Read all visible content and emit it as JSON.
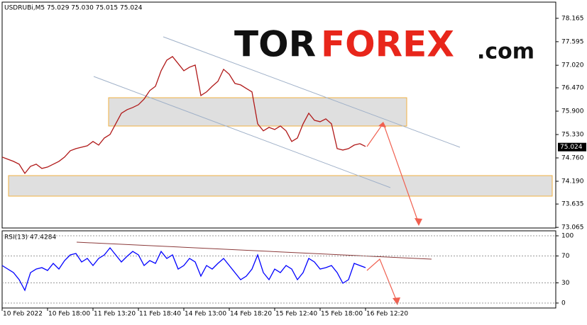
{
  "logo": {
    "part1": "TOR",
    "part2": "FOREX",
    "part3": ".com"
  },
  "chart_data": [
    {
      "type": "line",
      "title": "USDRUBi,M5  75.029 75.030 75.015 75.024",
      "x": [
        0,
        2,
        4,
        6,
        8,
        10,
        12,
        14,
        16,
        18,
        20,
        22,
        24,
        26,
        28,
        30,
        32,
        34,
        36,
        38,
        40,
        42,
        44,
        46,
        48,
        50,
        52,
        54,
        56,
        58,
        60,
        62,
        64,
        66,
        68,
        70,
        72,
        74,
        76,
        78,
        80,
        82,
        84,
        86,
        88,
        90,
        92,
        94,
        96,
        98,
        100,
        102,
        104,
        106,
        108,
        110,
        112,
        114,
        116,
        118,
        120,
        122,
        124,
        126,
        128
      ],
      "series": [
        {
          "name": "USDRUBi",
          "color": "#b01818",
          "values": [
            74.78,
            74.728,
            74.676,
            74.607,
            74.382,
            74.555,
            74.607,
            74.503,
            74.538,
            74.607,
            74.676,
            74.78,
            74.935,
            74.987,
            75.021,
            75.056,
            75.16,
            75.073,
            75.246,
            75.332,
            75.591,
            75.85,
            75.936,
            75.989,
            76.058,
            76.196,
            76.403,
            76.507,
            76.887,
            77.146,
            77.232,
            77.06,
            76.887,
            76.973,
            77.025,
            76.282,
            76.369,
            76.507,
            76.628,
            76.921,
            76.8,
            76.576,
            76.541,
            76.455,
            76.369,
            75.591,
            75.419,
            75.505,
            75.453,
            75.539,
            75.419,
            75.16,
            75.246,
            75.591,
            75.85,
            75.678,
            75.643,
            75.712,
            75.591,
            74.987,
            74.952,
            74.987,
            75.073,
            75.108,
            75.039
          ]
        }
      ],
      "last_price": 75.024,
      "xlim": [
        0,
        195
      ],
      "ylim": [
        73.05,
        78.56
      ],
      "yticks": [
        78.165,
        77.595,
        {
          "value": 77.02,
          "label": "77.020"
        },
        {
          "value": 76.47,
          "label": "76.470"
        },
        {
          "value": 75.9,
          "label": "75.900"
        },
        {
          "value": 75.33,
          "label": "75.330"
        },
        {
          "value": 74.76,
          "label": "74.760"
        },
        {
          "value": 74.19,
          "label": "74.190"
        },
        73.635,
        73.065
      ],
      "grid": false
    },
    {
      "type": "line",
      "title": "RSI(13) 47.4284",
      "x": [
        0,
        2,
        4,
        6,
        8,
        10,
        12,
        14,
        16,
        18,
        20,
        22,
        24,
        26,
        28,
        30,
        32,
        34,
        36,
        38,
        40,
        42,
        44,
        46,
        48,
        50,
        52,
        54,
        56,
        58,
        60,
        62,
        64,
        66,
        68,
        70,
        72,
        74,
        76,
        78,
        80,
        82,
        84,
        86,
        88,
        90,
        92,
        94,
        96,
        98,
        100,
        102,
        104,
        106,
        108,
        110,
        112,
        114,
        116,
        118,
        120,
        122,
        124,
        126,
        128
      ],
      "series": [
        {
          "name": "RSI(13)",
          "color": "#0000ff",
          "values": [
            55.8,
            50.5,
            45.3,
            34.7,
            18.9,
            45.3,
            50.5,
            52.6,
            48.4,
            58.9,
            50.5,
            63.2,
            71.6,
            73.7,
            61.1,
            66.3,
            55.8,
            66.3,
            71.6,
            82.1,
            71.6,
            61.1,
            69.5,
            76.8,
            71.6,
            55.8,
            63.2,
            58.9,
            76.8,
            66.3,
            71.6,
            50.5,
            55.8,
            66.3,
            61.1,
            40.0,
            55.8,
            50.5,
            58.9,
            66.3,
            55.8,
            45.3,
            34.7,
            40.0,
            50.5,
            71.6,
            45.3,
            34.7,
            50.5,
            45.3,
            55.8,
            50.5,
            34.7,
            45.3,
            66.3,
            61.1,
            50.5,
            52.6,
            55.8,
            45.3,
            29.5,
            34.7,
            58.9,
            55.8,
            52.6
          ]
        }
      ],
      "xlim": [
        0,
        195
      ],
      "ylim": [
        -7.4,
        107.4
      ],
      "yticks": [
        0,
        30,
        70,
        100
      ],
      "xticks": [
        {
          "value": 0,
          "label": "10 Feb 2022"
        },
        {
          "value": 16,
          "label": "10 Feb 18:00"
        },
        {
          "value": 32,
          "label": "11 Feb 13:20"
        },
        {
          "value": 48,
          "label": "11 Feb 18:40"
        },
        {
          "value": 64,
          "label": "14 Feb 13:00"
        },
        {
          "value": 80,
          "label": "14 Feb 18:20"
        },
        {
          "value": 96,
          "label": "15 Feb 12:40"
        },
        {
          "value": 112,
          "label": "15 Feb 18:00"
        },
        {
          "value": 128,
          "label": "16 Feb 12:20"
        }
      ],
      "grid": true
    }
  ]
}
